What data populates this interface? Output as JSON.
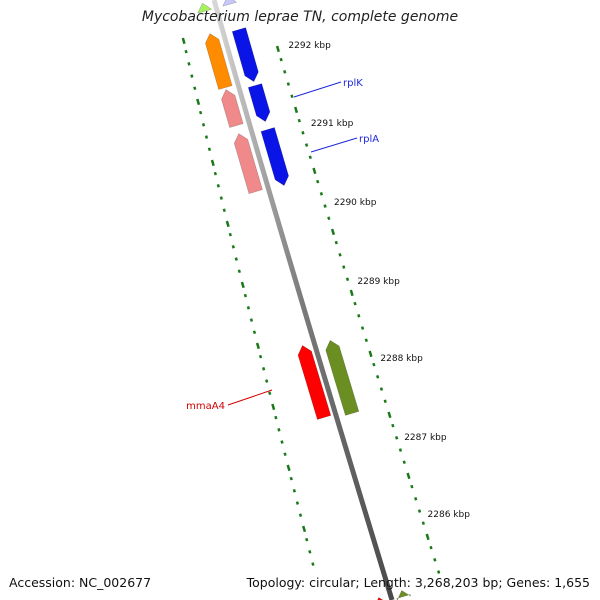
{
  "title": "Mycobacterium leprae TN, complete genome",
  "footer": {
    "accession": "Accession: NC_002677",
    "summary": "Topology: circular; Length: 3,268,203 bp; Genes: 1,655"
  },
  "colors": {
    "backbone": "#7a7a7a",
    "tick": "#1a7a1a",
    "forward_blue": "#0a14e6",
    "reverse_salmon": "#f08a8a",
    "orange": "#ff8c00",
    "lightgreen": "#a8f060",
    "olive": "#6b8e23",
    "red": "#ff0000",
    "label_blue": "#1f28d8",
    "label_red": "#d40000"
  },
  "scale_labels": [
    "2292 kbp",
    "2291 kbp",
    "2290 kbp",
    "2289 kbp",
    "2288 kbp",
    "2287 kbp",
    "2286 kbp"
  ],
  "gene_labels": [
    {
      "name": "rplK",
      "color": "#1f28d8"
    },
    {
      "name": "rplA",
      "color": "#1f28d8"
    },
    {
      "name": "mmaA4",
      "color": "#d40000"
    }
  ]
}
